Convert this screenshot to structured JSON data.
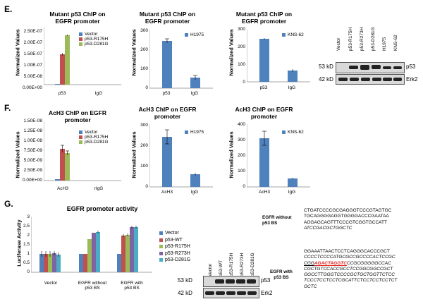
{
  "panels": {
    "E": "E.",
    "F": "F.",
    "G": "G."
  },
  "colors": {
    "vector": "#4f81bd",
    "r175h": "#c0504d",
    "d281g": "#9bbb59",
    "r273h": "#8064a2",
    "wt": "#c0504d",
    "cyan": "#4bacc6"
  },
  "e_charts": {
    "c1": {
      "title_l1": "Mutant p53 ChIP on",
      "title_l2": "EGFR promoter",
      "ylabel": "Normalized Values",
      "yticks": [
        "0.00E+00",
        "5.00E-08",
        "1.00E-07",
        "1.50E-07",
        "2.00E-07",
        "2.50E-07"
      ],
      "xcats": [
        "p53",
        "IgG"
      ],
      "legend": [
        "Vector",
        "p53-R175H",
        "p53-D281G"
      ]
    },
    "c2": {
      "title_l1": "Mutant p53 ChIP on",
      "title_l2": "EGFR promoter",
      "ylabel": "Normalized Values",
      "yticks": [
        "0",
        "100",
        "200",
        "300"
      ],
      "xcats": [
        "p53",
        "IgG"
      ],
      "legend": [
        "H1975"
      ]
    },
    "c3": {
      "title_l1": "Mutant p53 ChIP on",
      "title_l2": "EGFR promoter",
      "ylabel": "Normalized Values",
      "yticks": [
        "0",
        "100",
        "200",
        "300"
      ],
      "xcats": [
        "p53",
        "IgG"
      ],
      "legend": [
        "KNS-62"
      ]
    }
  },
  "e_blot": {
    "lanes": [
      "Vector",
      "p53-R175H",
      "p53-R273H",
      "p53-D281G",
      "H1975",
      "KNS-62"
    ],
    "kd1": "53 kD",
    "kd2": "42 kD",
    "p1": "p53",
    "p2": "Erk2"
  },
  "f_charts": {
    "c1": {
      "title_l1": "AcH3 ChIP on EGFR",
      "title_l2": "promoter",
      "ylabel": "Normalized Values",
      "yticks": [
        "0.00E+00",
        "2.50E-09",
        "5.00E-09",
        "7.50E-09",
        "1.00E-08",
        "1.25E-08",
        "1.50E-08"
      ],
      "xcats": [
        "AcH3",
        "rIgG"
      ],
      "legend": [
        "Vector",
        "p53-R175H",
        "p53-D281G"
      ]
    },
    "c2": {
      "title_l1": "AcH3 ChIP on EGFR",
      "title_l2": "promoter",
      "ylabel": "Normalized Values",
      "yticks": [
        "0",
        "100",
        "200",
        "300"
      ],
      "xcats": [
        "AcH3",
        "IgG"
      ],
      "legend": [
        "H1975"
      ]
    },
    "c3": {
      "title_l1": "AcH3 ChIP on EGFR",
      "title_l2": "promoter",
      "ylabel": "Normalized Values",
      "yticks": [
        "0",
        "100",
        "200",
        "300",
        "400"
      ],
      "xcats": [
        "AcH3",
        "IgG"
      ],
      "legend": [
        "KNS-62"
      ]
    }
  },
  "g_chart": {
    "title": "EGFR promoter activity",
    "ylabel": "Luciferase Activity",
    "yticks": [
      "0",
      "0.5",
      "1",
      "1.5",
      "2",
      "2.5",
      "3"
    ],
    "xcats_l1": [
      "Vector",
      "EGFR without",
      "EGFR with"
    ],
    "xcats_l2": [
      "",
      "p53 BS",
      "p53 BS"
    ],
    "legend": [
      "Vector",
      "p53-WT",
      "p53-R175H",
      "p53-R273H",
      "p53-D281G"
    ]
  },
  "g_blot": {
    "lanes": [
      "Vector",
      "p53-WT",
      "p53-R175H",
      "p53-R273H",
      "p53-D281G"
    ],
    "kd1": "53 kD",
    "kd2": "42 kD",
    "p1": "p53",
    "p2": "Erk2"
  },
  "sequences": {
    "without_label_l1": "EGFR without",
    "without_label_l2": "p53 BS",
    "without_lines": [
      "CTGATCCCCGCGAGGGTCCCGTAGTGC",
      "TGCAGGGGAGGTGGGGACCCGAATAA",
      "AGGAGCAGTTTCCCGTCGGTGCCATT",
      "ATCCGACGCTGGCTC"
    ],
    "with_label_l1": "EGFR with",
    "with_label_l2": "p53 BS",
    "with_l1": "GGAAATTAACTCCTCAGGGCACCCGCT",
    "with_l2": "CCCCTCCCCATGCGCCGCCCCACTCCGC",
    "with_l3a": "CGG",
    "with_l3b": "AGACTAGGTC",
    "with_l3c": "CCGCGGGGGCCAC",
    "with_l4": "CGCTGTCCACCGCCTCCGGCGGCCGCT",
    "with_l5": "GGCCTTGGGTCCCCGCTGCTGGTTCTCC",
    "with_l6": "TCCCTCCTCCTCGCATTCTCCTCCTCCTCT",
    "with_l7": "GCTC"
  },
  "chart_data": [
    {
      "type": "bar",
      "title": "Mutant p53 ChIP on EGFR promoter",
      "ylabel": "Normalized Values",
      "categories": [
        "p53",
        "IgG"
      ],
      "series": [
        {
          "name": "Vector",
          "values": [
            2e-09,
            0
          ]
        },
        {
          "name": "p53-R175H",
          "values": [
            1.3e-07,
            0
          ]
        },
        {
          "name": "p53-D281G",
          "values": [
            2.15e-07,
            0
          ]
        }
      ],
      "ylim": [
        0,
        2.5e-07
      ]
    },
    {
      "type": "bar",
      "title": "Mutant p53 ChIP on EGFR promoter",
      "ylabel": "Normalized Values",
      "categories": [
        "p53",
        "IgG"
      ],
      "series": [
        {
          "name": "H1975",
          "values": [
            210,
            48
          ]
        }
      ],
      "ylim": [
        0,
        300
      ]
    },
    {
      "type": "bar",
      "title": "Mutant p53 ChIP on EGFR promoter",
      "ylabel": "Normalized Values",
      "categories": [
        "p53",
        "IgG"
      ],
      "series": [
        {
          "name": "KNS-62",
          "values": [
            243,
            65
          ]
        }
      ],
      "ylim": [
        0,
        300
      ]
    },
    {
      "type": "bar",
      "title": "AcH3 ChIP on EGFR promoter",
      "ylabel": "Normalized Values",
      "categories": [
        "AcH3",
        "rIgG"
      ],
      "series": [
        {
          "name": "Vector",
          "values": [
            2e-10,
            0
          ]
        },
        {
          "name": "p53-R175H",
          "values": [
            8e-09,
            0
          ]
        },
        {
          "name": "p53-D281G",
          "values": [
            7e-09,
            0
          ]
        }
      ],
      "ylim": [
        0,
        1.5e-08
      ]
    },
    {
      "type": "bar",
      "title": "AcH3 ChIP on EGFR promoter",
      "ylabel": "Normalized Values",
      "categories": [
        "AcH3",
        "IgG"
      ],
      "series": [
        {
          "name": "H1975",
          "values": [
            240,
            60
          ]
        }
      ],
      "ylim": [
        0,
        300
      ]
    },
    {
      "type": "bar",
      "title": "AcH3 ChIP on EGFR promoter",
      "ylabel": "Normalized Values",
      "categories": [
        "AcH3",
        "IgG"
      ],
      "series": [
        {
          "name": "KNS-62",
          "values": [
            315,
            55
          ]
        }
      ],
      "ylim": [
        0,
        400
      ]
    },
    {
      "type": "bar",
      "title": "EGFR promoter activity",
      "ylabel": "Luciferase Activity",
      "categories": [
        "Vector",
        "EGFR without p53 BS",
        "EGFR with p53 BS"
      ],
      "series": [
        {
          "name": "Vector",
          "values": [
            1.0,
            1.0,
            1.0
          ]
        },
        {
          "name": "p53-WT",
          "values": [
            1.0,
            1.0,
            2.0
          ]
        },
        {
          "name": "p53-R175H",
          "values": [
            1.0,
            1.8,
            2.05
          ]
        },
        {
          "name": "p53-R273H",
          "values": [
            1.05,
            2.15,
            2.45
          ]
        },
        {
          "name": "p53-D281G",
          "values": [
            0.95,
            2.2,
            2.45
          ]
        }
      ],
      "ylim": [
        0,
        3
      ]
    }
  ]
}
